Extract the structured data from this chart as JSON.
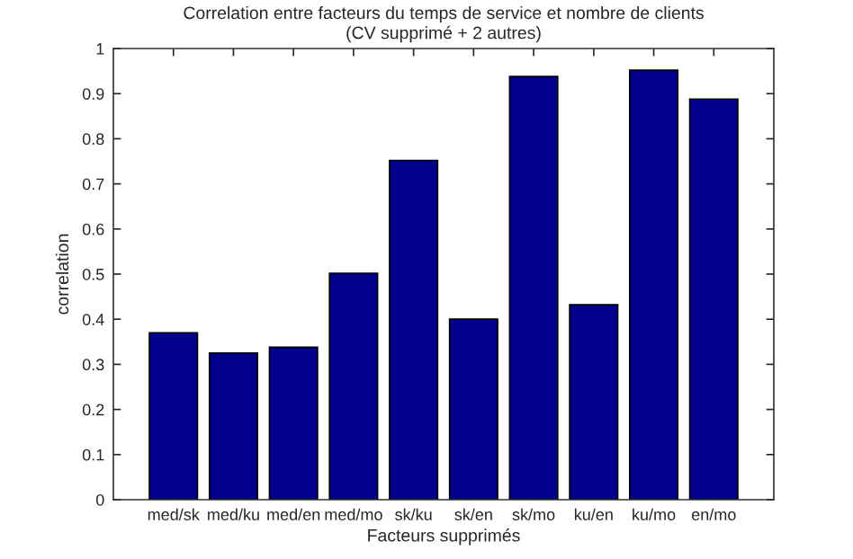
{
  "chart_data": {
    "type": "bar",
    "title": "Correlation entre facteurs du temps de service et nombre de clients",
    "subtitle": "(CV supprimé + 2 autres)",
    "xlabel": "Facteurs supprimés",
    "ylabel": "correlation",
    "categories": [
      "med/sk",
      "med/ku",
      "med/en",
      "med/mo",
      "sk/ku",
      "sk/en",
      "sk/mo",
      "ku/en",
      "ku/mo",
      "en/mo"
    ],
    "values": [
      0.37,
      0.325,
      0.338,
      0.502,
      0.752,
      0.4,
      0.938,
      0.432,
      0.952,
      0.888
    ],
    "color": "#00008b",
    "ylim": [
      0,
      1
    ],
    "yticks": [
      0,
      0.1,
      0.2,
      0.3,
      0.4,
      0.5,
      0.6,
      0.7,
      0.8,
      0.9,
      1
    ],
    "grid": false
  }
}
